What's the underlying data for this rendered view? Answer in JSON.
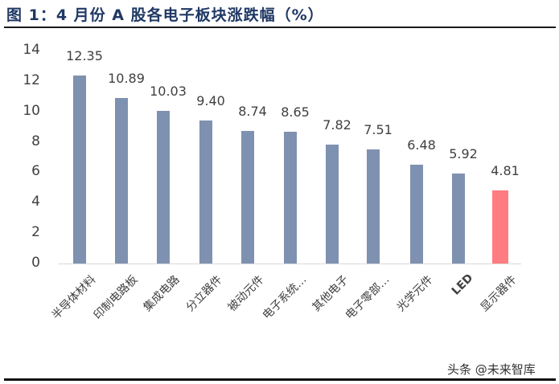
{
  "title": "图 1：4 月份 A 股各电子板块涨跌幅（%）",
  "watermark": "头条 @未来智库",
  "colors": {
    "bar_default": "#7f91b0",
    "bar_highlight": "#ff7c80",
    "axis": "#d9d9d9",
    "title": "#1f3864",
    "text": "#404040"
  },
  "chart_data": {
    "type": "bar",
    "title": "图 1：4 月份 A 股各电子板块涨跌幅（%）",
    "xlabel": "",
    "ylabel": "",
    "ylim": [
      0,
      14
    ],
    "yticks": [
      0,
      2,
      4,
      6,
      8,
      10,
      12,
      14
    ],
    "grid": false,
    "legend": null,
    "categories": [
      "半导体材料",
      "印制电路板",
      "集成电路",
      "分立器件",
      "被动元件",
      "电子系统…",
      "其他电子",
      "电子零部…",
      "光学元件",
      "LED",
      "显示器件"
    ],
    "values": [
      12.35,
      10.89,
      10.03,
      9.4,
      8.74,
      8.65,
      7.82,
      7.51,
      6.48,
      5.92,
      4.81
    ],
    "value_labels": [
      "12.35",
      "10.89",
      "10.03",
      "9.40",
      "8.74",
      "8.65",
      "7.82",
      "7.51",
      "6.48",
      "5.92",
      "4.81"
    ],
    "highlight_index": 10
  }
}
